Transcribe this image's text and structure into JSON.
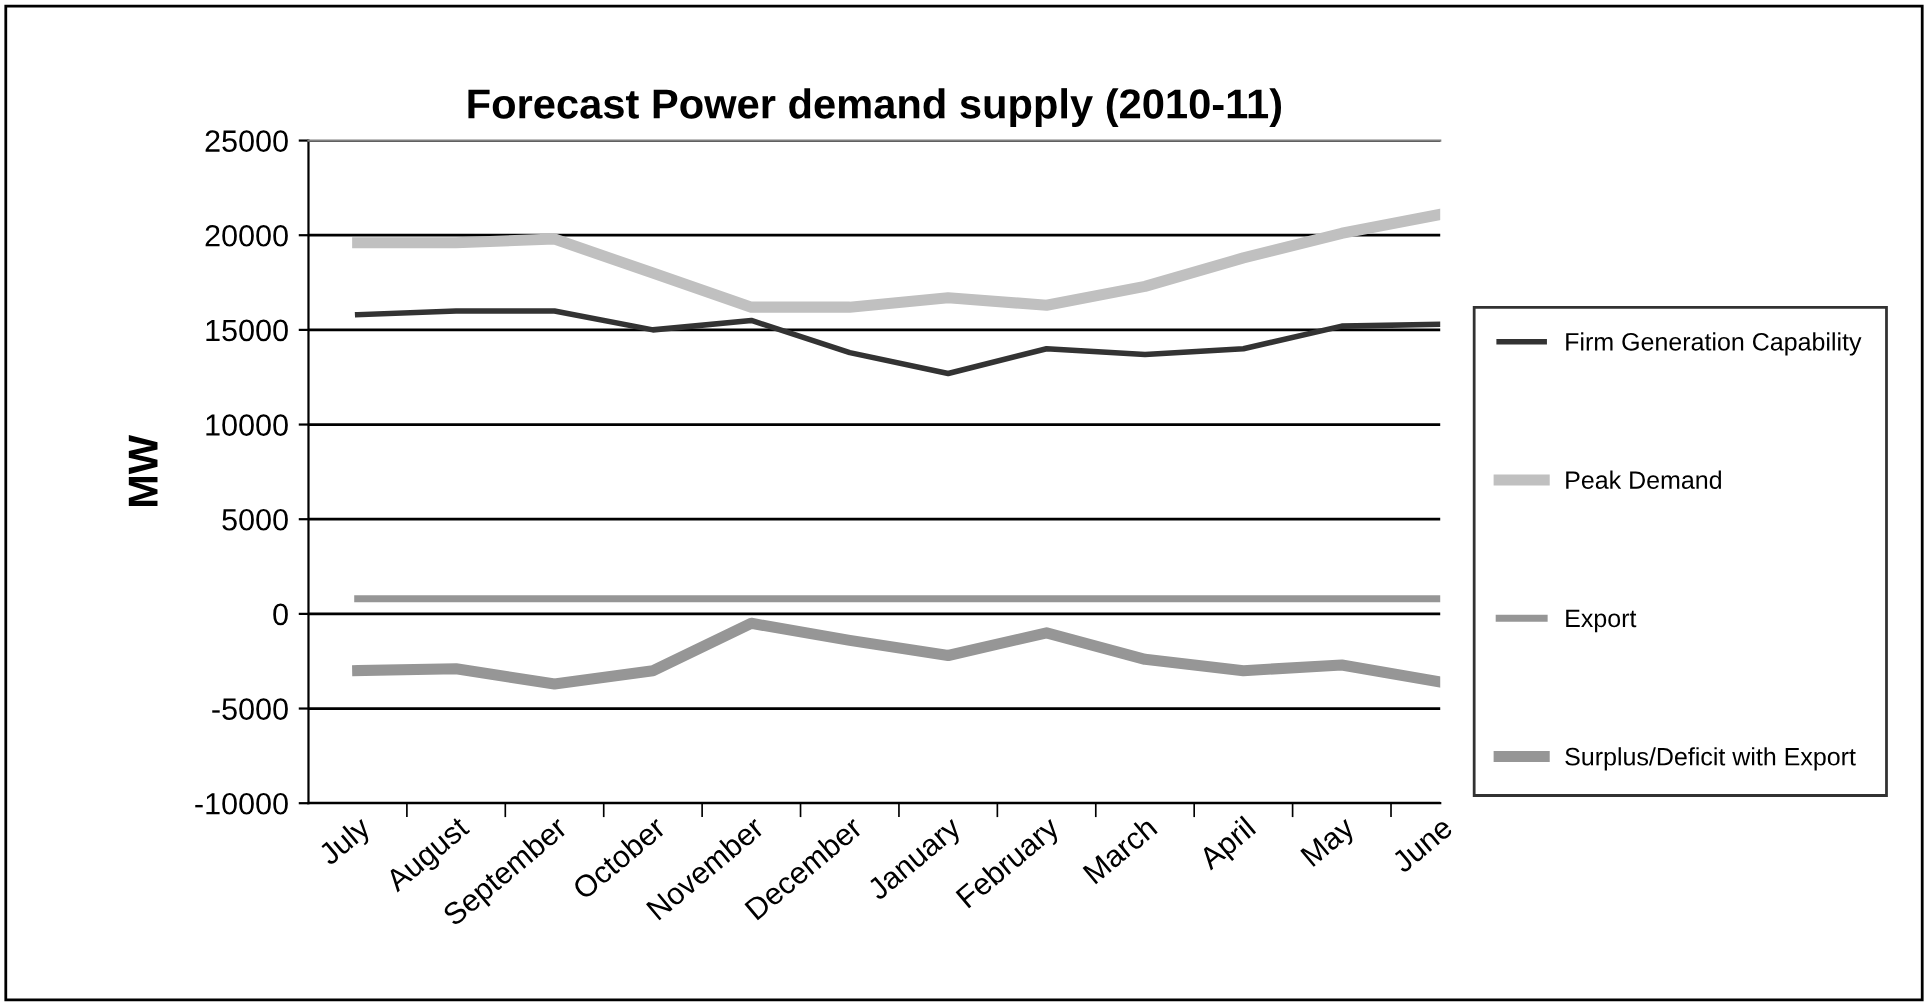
{
  "chart_data": {
    "type": "line",
    "title": "Forecast Power demand supply (2010-11)",
    "ylabel": "MW",
    "categories": [
      "July",
      "August",
      "September",
      "October",
      "November",
      "December",
      "January",
      "February",
      "March",
      "April",
      "May",
      "June"
    ],
    "series": [
      {
        "name": "Firm Generation Capability",
        "color": "#333333",
        "values": [
          15800,
          16000,
          16000,
          15000,
          15500,
          13800,
          12700,
          14000,
          13700,
          14000,
          15200,
          15300
        ]
      },
      {
        "name": "Peak Demand",
        "color": "#c0c0c0",
        "values": [
          19600,
          19600,
          19800,
          18000,
          16200,
          16200,
          16700,
          16300,
          17300,
          18800,
          20100,
          21100
        ]
      },
      {
        "name": "Export",
        "color": "#969696",
        "values": [
          800,
          800,
          800,
          800,
          800,
          800,
          800,
          800,
          800,
          800,
          800,
          800
        ]
      },
      {
        "name": "Surplus/Deficit with Export",
        "color": "#969696",
        "values": [
          -3000,
          -2900,
          -3700,
          -3000,
          -500,
          -1400,
          -2200,
          -1000,
          -2400,
          -3000,
          -2700,
          -3600
        ]
      }
    ],
    "ylim": [
      -10000,
      25000
    ],
    "yticks": [
      -10000,
      -5000,
      0,
      5000,
      10000,
      15000,
      20000,
      25000
    ],
    "grid": "y",
    "legend": "right",
    "marker": "none",
    "line_style": "solid"
  }
}
